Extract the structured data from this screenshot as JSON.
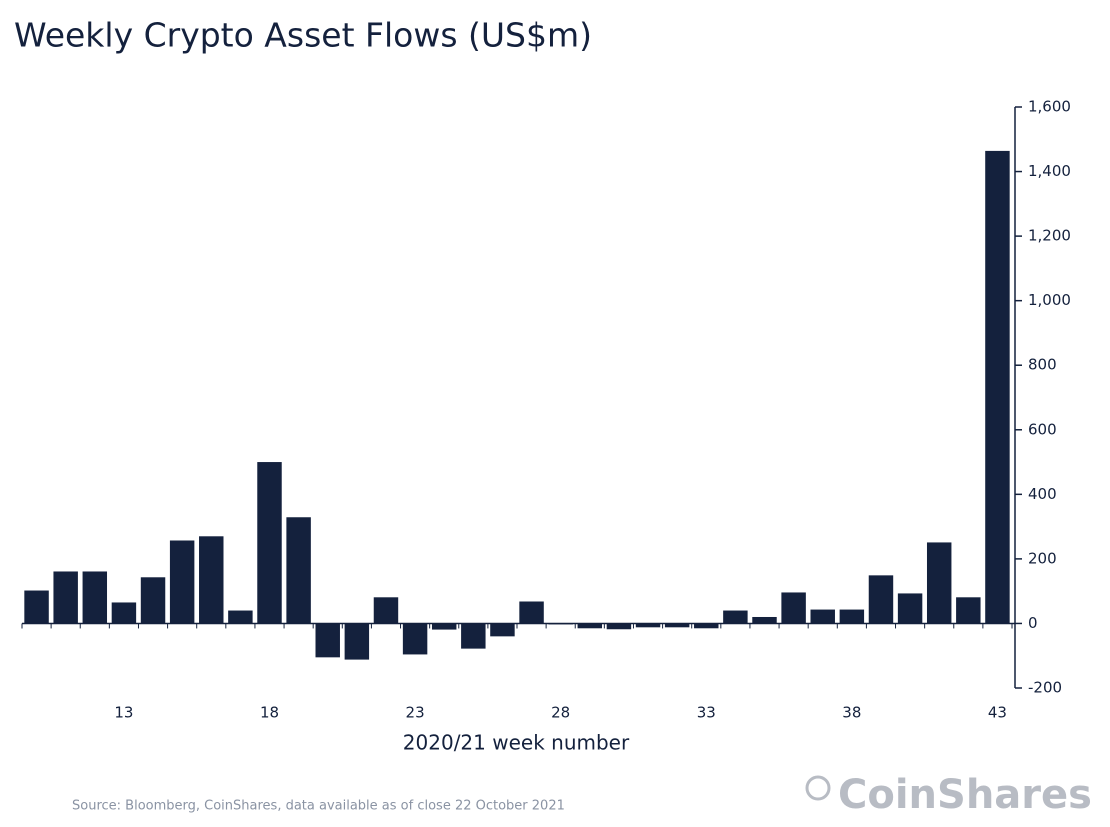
{
  "chart_data": {
    "type": "bar",
    "title": "Weekly Crypto Asset Flows (US$m)",
    "x_label": "2020/21 week number",
    "source": "Source: Bloomberg, CoinShares, data available as of close 22 October 2021",
    "logo": "CoinShares",
    "color": "#14213d",
    "categories": [
      null,
      null,
      null,
      "13",
      null,
      null,
      null,
      null,
      "18",
      null,
      null,
      null,
      null,
      "23",
      null,
      null,
      null,
      null,
      "28",
      null,
      null,
      null,
      null,
      "33",
      null,
      null,
      null,
      null,
      "38",
      null,
      null,
      null,
      null,
      "43"
    ],
    "values": [
      102,
      161,
      161,
      65,
      143,
      257,
      270,
      40,
      500,
      329,
      -105,
      -112,
      81,
      -96,
      -19,
      -78,
      -40,
      68,
      -3,
      -15,
      -18,
      -12,
      -12,
      -15,
      40,
      20,
      96,
      43,
      43,
      149,
      93,
      251,
      81,
      1464
    ],
    "ylim": [
      -200,
      1600
    ],
    "yticks": [
      {
        "value": -200,
        "label": "-200"
      },
      0,
      200,
      400,
      600,
      800,
      {
        "value": 1000,
        "label": "1,000"
      },
      {
        "value": 1200,
        "label": "1,200"
      },
      {
        "value": 1400,
        "label": "1,400"
      },
      {
        "value": 1600,
        "label": "1,600"
      }
    ]
  }
}
